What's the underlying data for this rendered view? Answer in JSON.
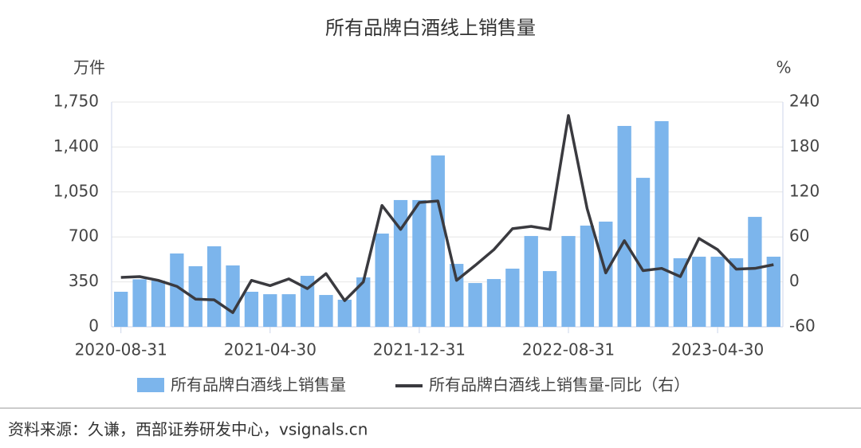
{
  "chart_data": {
    "type": "bar-line",
    "title": "所有品牌白酒线上销售量",
    "y_label": "万件",
    "y2_label": "%",
    "categories": [
      "2020-08-31",
      null,
      null,
      null,
      null,
      null,
      null,
      null,
      "2021-04-30",
      null,
      null,
      null,
      null,
      null,
      null,
      null,
      "2021-12-31",
      null,
      null,
      null,
      null,
      null,
      null,
      null,
      "2022-08-31",
      null,
      null,
      null,
      null,
      null,
      null,
      null,
      "2023-04-30",
      null,
      null,
      null
    ],
    "series": [
      {
        "name": "所有品牌白酒线上销售量",
        "color": "#7cb5ec",
        "values": [
          273,
          370,
          360,
          571,
          472,
          627,
          478,
          273,
          254,
          254,
          397,
          248,
          211,
          385,
          726,
          987,
          987,
          1334,
          490,
          341,
          372,
          453,
          707,
          434,
          707,
          788,
          819,
          1564,
          1160,
          1601,
          534,
          546,
          546,
          534,
          856,
          546
        ]
      },
      {
        "name": "所有品牌白酒线上销售量-同比（右）",
        "color": "#3a3a3f",
        "axis": "y2",
        "values": [
          6,
          7,
          2,
          -6,
          -23,
          -24,
          -41,
          2,
          -5,
          4,
          -9,
          11,
          -25,
          0,
          102,
          70,
          106,
          108,
          2,
          22,
          43,
          71,
          74,
          70,
          222,
          98,
          12,
          55,
          15,
          18,
          7,
          58,
          43,
          17,
          18,
          23
        ]
      }
    ],
    "ylim": [
      0,
      1750
    ],
    "yticks": [
      0,
      350,
      700,
      {
        "value": 1050,
        "label": "1,050"
      },
      {
        "value": 1400,
        "label": "1,400"
      },
      {
        "value": 1750,
        "label": "1,750"
      }
    ],
    "y2lim": [
      -60,
      240
    ],
    "y2ticks": [
      -60,
      0,
      60,
      120,
      180,
      240
    ],
    "grid": true,
    "source": "资料来源：久谦，西部证券研发中心，vsignals.cn"
  }
}
